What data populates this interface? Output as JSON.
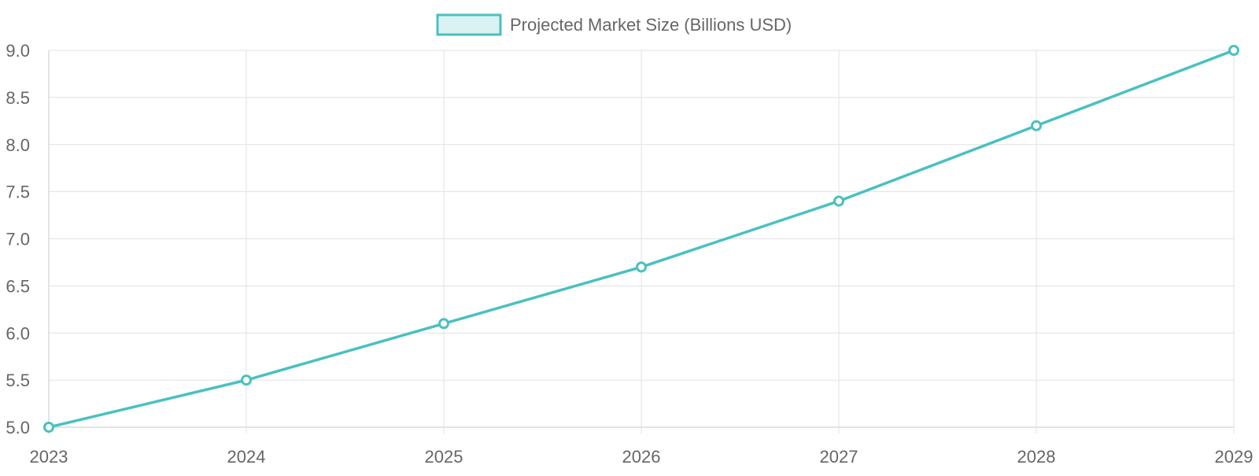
{
  "colors": {
    "line": "#4bc0c0",
    "fill": "#d9f3f2",
    "grid": "#e1e1e1",
    "text": "#666666"
  },
  "chart_data": {
    "type": "line",
    "title": "",
    "xlabel": "",
    "ylabel": "",
    "categories": [
      "2023",
      "2024",
      "2025",
      "2026",
      "2027",
      "2028",
      "2029"
    ],
    "series": [
      {
        "name": "Projected Market Size (Billions USD)",
        "values": [
          5.0,
          5.5,
          6.1,
          6.7,
          7.4,
          8.2,
          9.0
        ]
      }
    ],
    "ylim": [
      5.0,
      9.0
    ],
    "yticks": [
      "5.0",
      "5.5",
      "6.0",
      "6.5",
      "7.0",
      "7.5",
      "8.0",
      "8.5",
      "9.0"
    ],
    "grid": true,
    "legend_position": "top-center"
  }
}
